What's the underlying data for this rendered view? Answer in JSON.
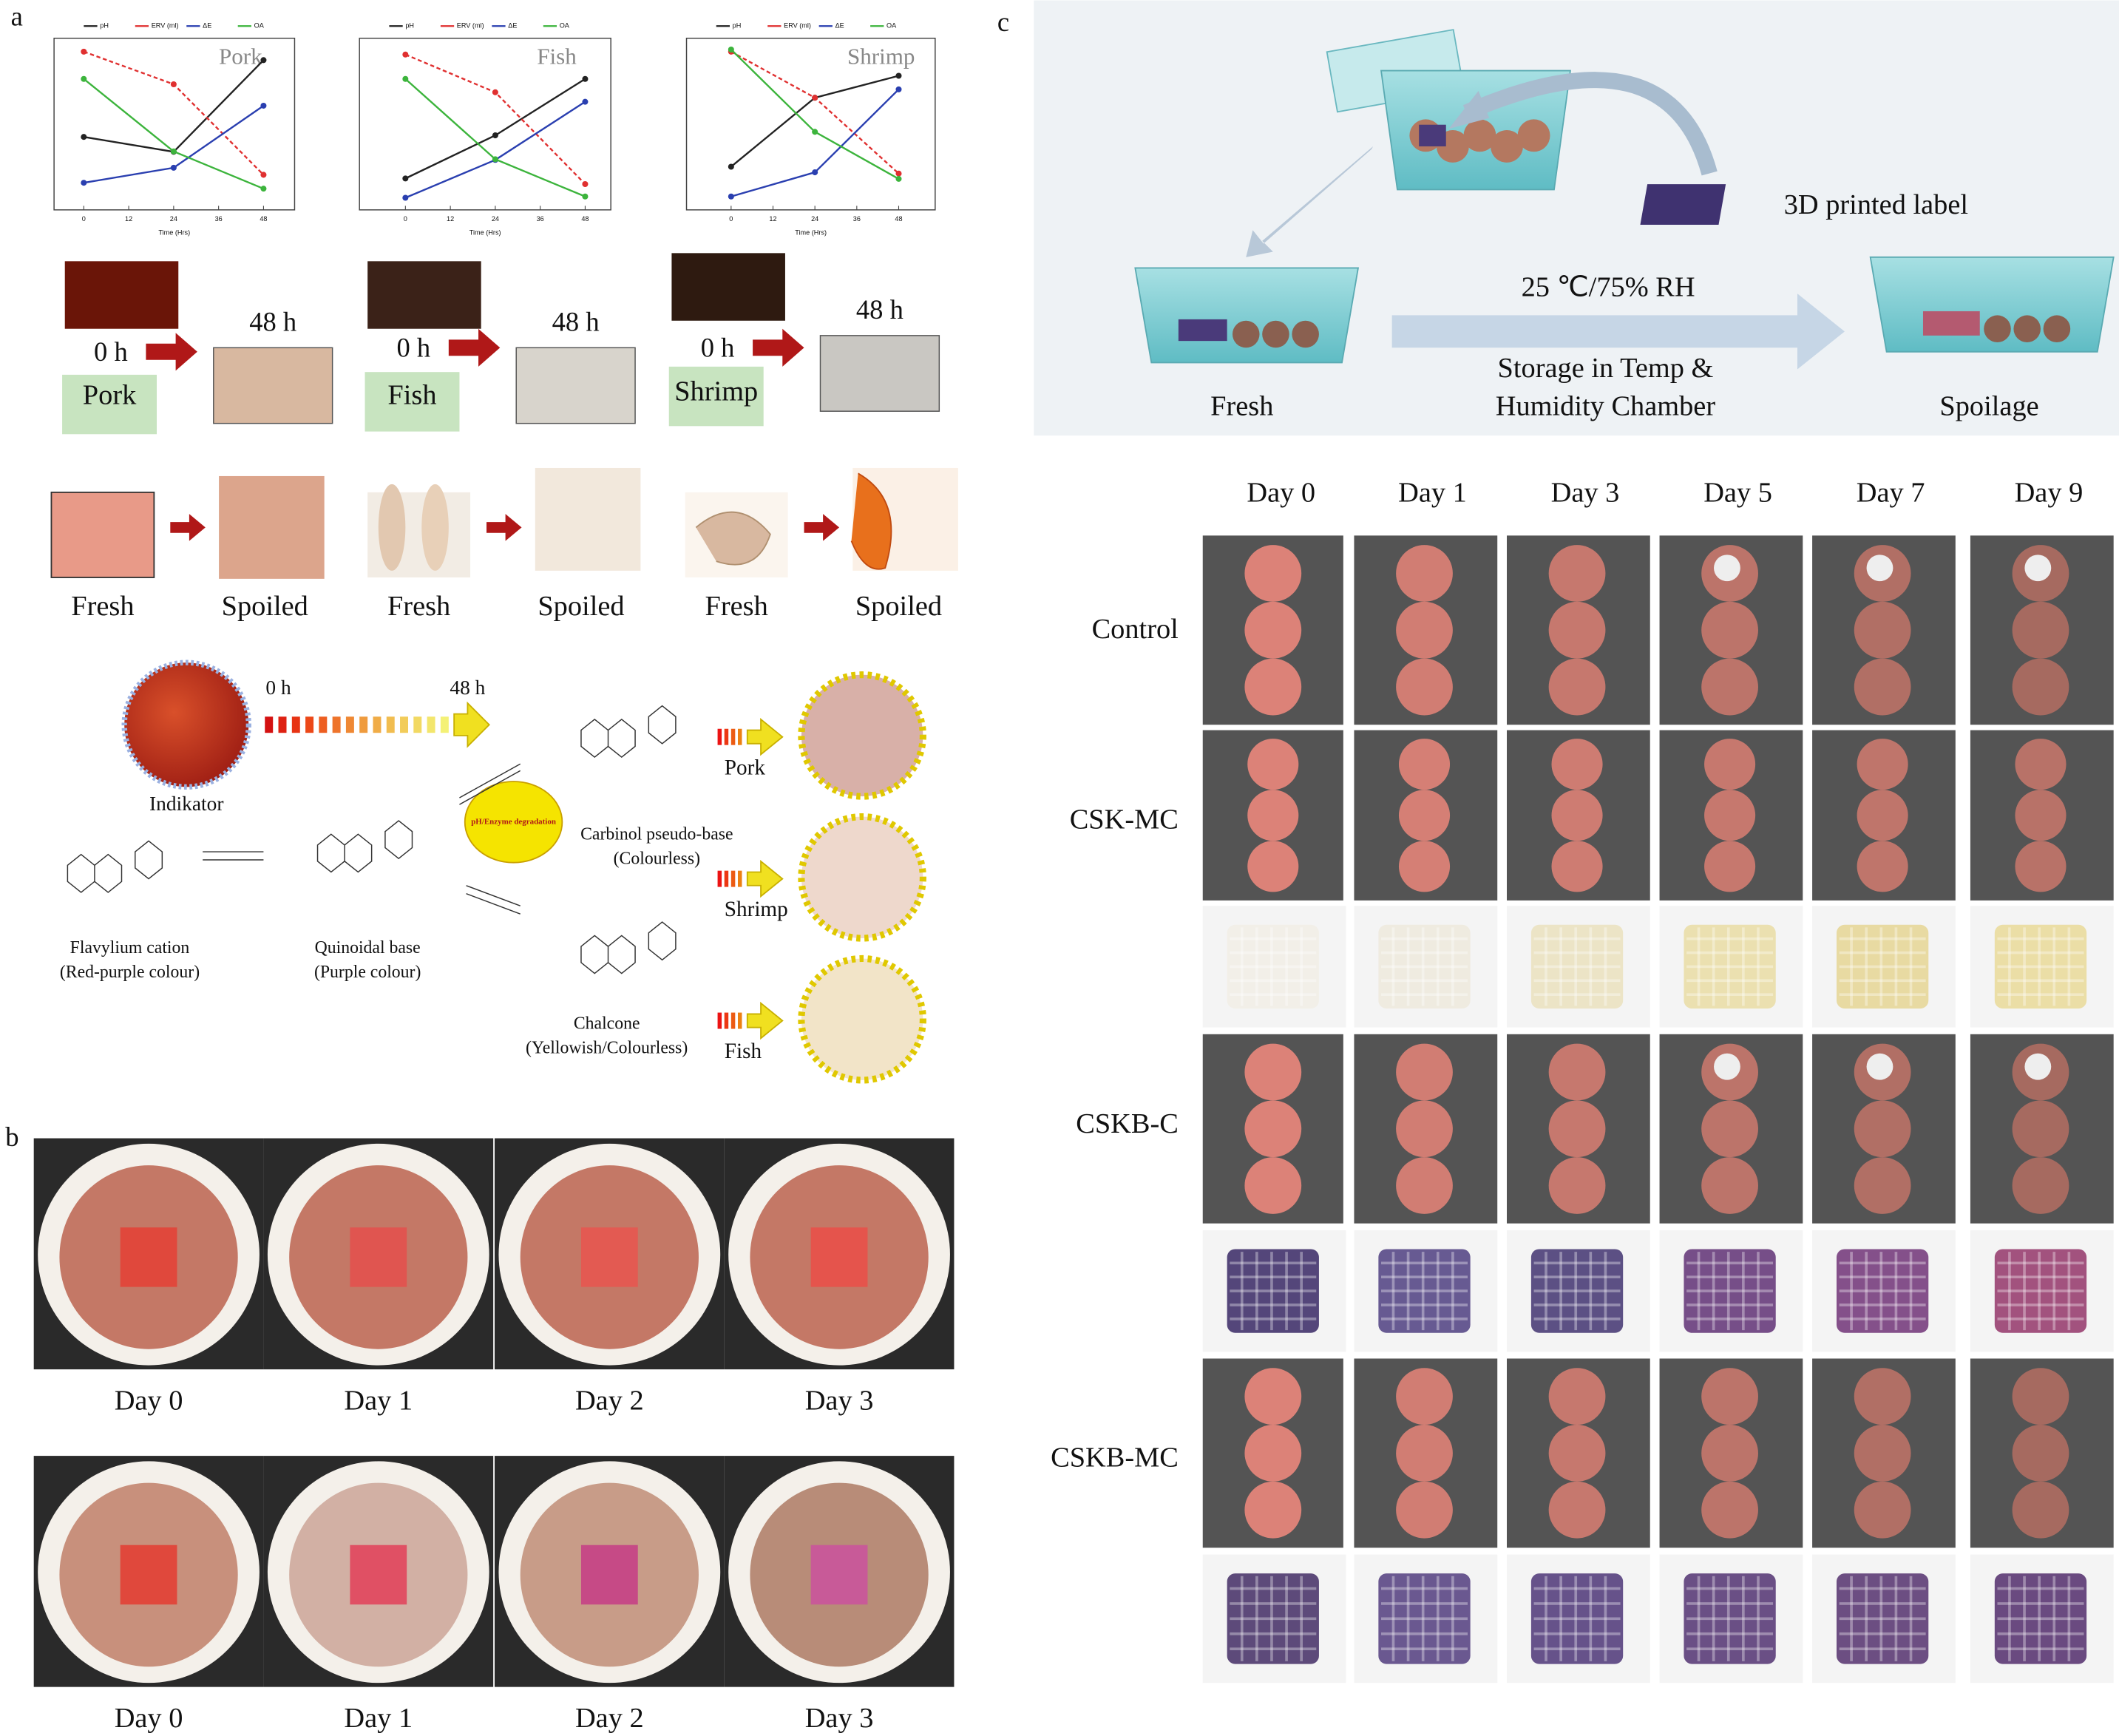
{
  "panel_a": {
    "label": "a",
    "plots": [
      {
        "title": "Pork",
        "x": [
          0,
          24,
          48
        ],
        "xticks": [
          0,
          12,
          24,
          36,
          48
        ],
        "xlabel": "Time (Hrs)",
        "series": [
          {
            "name": "pH",
            "color": "#222222",
            "ylim": [
              5,
              7
            ],
            "values": [
              5.81,
              5.62,
              6.79
            ]
          },
          {
            "name": "ERV (ml)",
            "color": "#e03030",
            "ylim": [
              0,
              49
            ],
            "values": [
              46.5,
              36.3,
              8.0
            ]
          },
          {
            "name": "ΔE",
            "color": "#2a3fb0",
            "ylim": [
              48,
              72
            ],
            "values": [
              50.7,
              53.0,
              62.5
            ]
          },
          {
            "name": "OA",
            "color": "#3cb43c",
            "ylim": [
              0,
              8
            ],
            "values": [
              6.2,
              2.5,
              0.6
            ]
          }
        ]
      },
      {
        "title": "Fish",
        "x": [
          0,
          24,
          48
        ],
        "xticks": [
          0,
          12,
          24,
          36,
          48
        ],
        "xlabel": "Time (Hrs)",
        "series": [
          {
            "name": "pH",
            "color": "#222222",
            "ylim": [
              5,
              7
            ],
            "values": [
              5.28,
              5.83,
              6.55
            ]
          },
          {
            "name": "ERV (ml)",
            "color": "#e03030",
            "ylim": [
              0,
              49
            ],
            "values": [
              45.6,
              33.8,
              5.1
            ]
          },
          {
            "name": "ΔE",
            "color": "#2a3fb0",
            "ylim": [
              48,
              72
            ],
            "values": [
              48.4,
              54.2,
              63.1
            ]
          },
          {
            "name": "OA",
            "color": "#3cb43c",
            "ylim": [
              0,
              8
            ],
            "values": [
              6.2,
              2.1,
              0.2
            ]
          }
        ]
      },
      {
        "title": "Shrimp",
        "x": [
          0,
          24,
          48
        ],
        "xticks": [
          0,
          12,
          24,
          36,
          48
        ],
        "xlabel": "Time (Hrs)",
        "series": [
          {
            "name": "pH",
            "color": "#222222",
            "ylim": [
              5,
              7
            ],
            "values": [
              5.43,
              6.31,
              6.59
            ]
          },
          {
            "name": "ERV (ml)",
            "color": "#e03030",
            "ylim": [
              0,
              49
            ],
            "values": [
              46.5,
              32.1,
              8.4
            ]
          },
          {
            "name": "ΔE",
            "color": "#2a3fb0",
            "ylim": [
              48,
              72
            ],
            "values": [
              48.6,
              52.3,
              65.0
            ]
          },
          {
            "name": "OA",
            "color": "#3cb43c",
            "ylim": [
              0,
              8
            ],
            "values": [
              7.7,
              3.5,
              1.1
            ]
          }
        ]
      }
    ],
    "samples": [
      {
        "start": "0 h",
        "end": "48 h",
        "name": "Pork",
        "fresh": "Fresh",
        "spoiled": "Spoiled"
      },
      {
        "start": "0 h",
        "end": "48 h",
        "name": "Fish",
        "fresh": "Fresh",
        "spoiled": "Spoiled"
      },
      {
        "start": "0 h",
        "end": "48 h",
        "name": "Shrimp",
        "fresh": "Fresh",
        "spoiled": "Spoiled"
      }
    ],
    "scheme": {
      "t0": "0 h",
      "t1": "48 h",
      "indikator": "Indikator",
      "flavylium": "Flavylium cation",
      "flavylium_color": "(Red-purple colour)",
      "quinoidal": "Quinoidal base",
      "quinoidal_color": "(Purple colour)",
      "carbinol": "Carbinol pseudo-base",
      "carbinol_color": "(Colourless)",
      "chalcone": "Chalcone",
      "chalcone_color": "(Yellowish/Colourless)",
      "enzyme": "pH/Enzyme degradation",
      "results": [
        "Pork",
        "Shrimp",
        "Fish"
      ]
    }
  },
  "panel_b": {
    "label": "b",
    "rows": [
      [
        "Day 0",
        "Day 1",
        "Day 2",
        "Day 3"
      ],
      [
        "Day 0",
        "Day 1",
        "Day 2",
        "Day 3"
      ]
    ]
  },
  "panel_c": {
    "label": "c",
    "label3d": "3D printed label",
    "condition": "25 ℃/75% RH",
    "storage": [
      "Storage in Temp &",
      "Humidity Chamber"
    ],
    "fresh": "Fresh",
    "spoilage": "Spoilage",
    "days": [
      "Day 0",
      "Day 1",
      "Day 3",
      "Day 5",
      "Day 7",
      "Day 9"
    ],
    "rows": [
      "Control",
      "CSK-MC",
      "CSKB-C",
      "CSKB-MC"
    ]
  }
}
